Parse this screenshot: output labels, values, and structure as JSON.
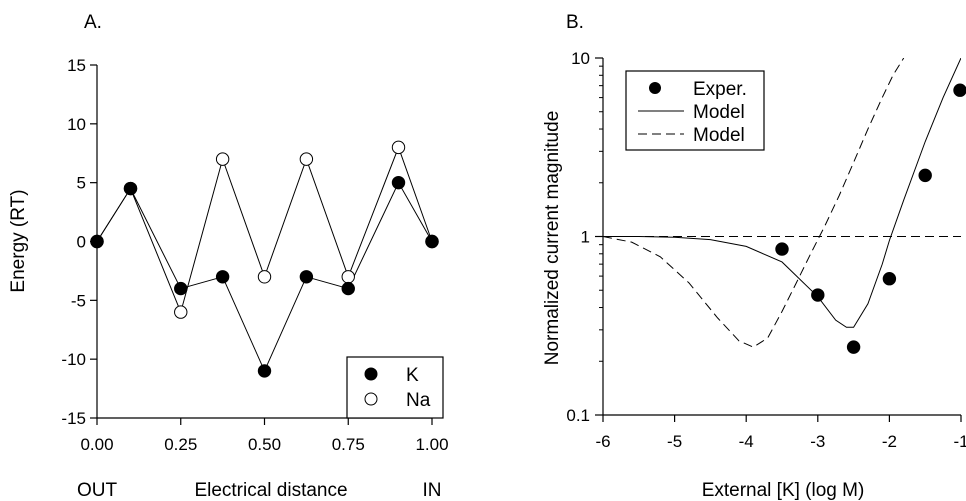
{
  "panels": {
    "a": {
      "label": "A."
    },
    "b": {
      "label": "B."
    }
  },
  "chart_data": [
    {
      "type": "line",
      "panel_label": "A.",
      "xlabel": "Electrical distance",
      "ylabel": "Energy (RT)",
      "xlim": [
        0,
        1
      ],
      "ylim": [
        -15,
        15
      ],
      "x_ticks": [
        "0.00",
        "0.25",
        "0.50",
        "0.75",
        "1.00"
      ],
      "y_ticks": [
        "15",
        "10",
        "5",
        "0",
        "-5",
        "-10",
        "-15"
      ],
      "x_endpoint_labels": {
        "left": "OUT",
        "right": "IN"
      },
      "legend_position": "bottom-right",
      "grid": false,
      "series": [
        {
          "name": "K",
          "marker": "filled-circle",
          "color": "#000000",
          "x": [
            0,
            0.1,
            0.25,
            0.375,
            0.5,
            0.625,
            0.75,
            0.9,
            1.0
          ],
          "y": [
            0,
            4.5,
            -4,
            -3,
            -11,
            -3,
            -4,
            5,
            0
          ]
        },
        {
          "name": "Na",
          "marker": "open-circle",
          "color": "#000000",
          "x": [
            0,
            0.1,
            0.25,
            0.375,
            0.5,
            0.625,
            0.75,
            0.9,
            1.0
          ],
          "y": [
            0,
            4.5,
            -6,
            7,
            -3,
            7,
            -3,
            8,
            0
          ]
        }
      ]
    },
    {
      "type": "line",
      "panel_label": "B.",
      "xlabel": "External [K] (log M)",
      "ylabel": "Normalized current magnitude",
      "xlim": [
        -6,
        -1
      ],
      "ylim": [
        0.1,
        10
      ],
      "y_scale": "log",
      "x_ticks": [
        "-6",
        "-5",
        "-4",
        "-3",
        "-2",
        "-1"
      ],
      "y_ticks": [
        "10",
        "1",
        "0.1"
      ],
      "legend_position": "top-left",
      "grid": false,
      "series": [
        {
          "name": "Exper.",
          "style": "filled-circle",
          "x": [
            -3.5,
            -3.0,
            -2.5,
            -2.0,
            -1.5,
            -1.0
          ],
          "y": [
            0.85,
            0.47,
            0.24,
            0.58,
            2.2,
            6.6
          ]
        },
        {
          "name": "Model",
          "style": "solid-line",
          "x": [
            -6,
            -5.5,
            -5.0,
            -4.5,
            -4.0,
            -3.5,
            -3.0,
            -2.75,
            -2.6,
            -2.5,
            -2.3,
            -2.1,
            -2.0,
            -1.8,
            -1.5,
            -1.25,
            -1.0
          ],
          "y": [
            1.0,
            1.0,
            0.99,
            0.96,
            0.88,
            0.72,
            0.46,
            0.34,
            0.31,
            0.31,
            0.42,
            0.7,
            0.95,
            1.6,
            3.4,
            6.0,
            10.0
          ]
        },
        {
          "name": "Model",
          "style": "dashed-line",
          "x": [
            -6,
            -5.6,
            -5.2,
            -4.8,
            -4.4,
            -4.1,
            -3.9,
            -3.7,
            -3.5,
            -3.3,
            -3.1,
            -2.9,
            -2.7,
            -2.5,
            -2.3,
            -2.1,
            -1.95,
            -1.8
          ],
          "y": [
            1.0,
            0.93,
            0.77,
            0.55,
            0.35,
            0.26,
            0.24,
            0.27,
            0.38,
            0.55,
            0.8,
            1.15,
            1.7,
            2.6,
            4.0,
            6.0,
            8.0,
            10.0
          ]
        },
        {
          "name": "",
          "style": "dashed-line",
          "x": [
            -6,
            -1
          ],
          "y": [
            1.0,
            1.0
          ]
        }
      ]
    }
  ]
}
